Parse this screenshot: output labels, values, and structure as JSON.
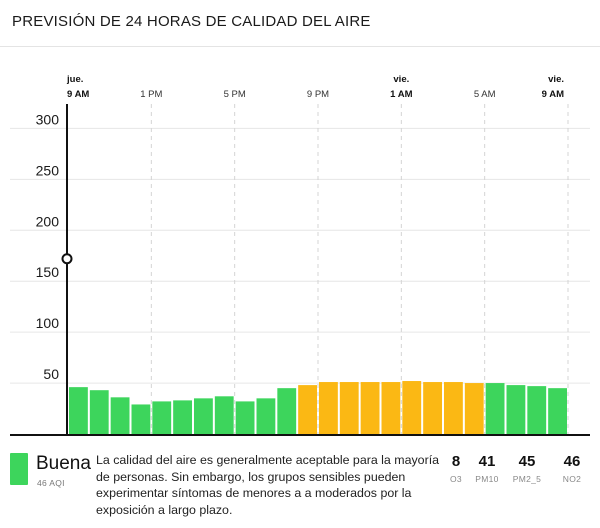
{
  "header": {
    "title": "PREVISIÓN DE 24 HORAS DE CALIDAD DEL AIRE"
  },
  "colors": {
    "good": "#3dd55c",
    "moderate": "#fbb814",
    "cursor": "#111111"
  },
  "chart_data": {
    "type": "bar",
    "title": "PREVISIÓN DE 24 HORAS DE CALIDAD DEL AIRE",
    "ylim": [
      0,
      320
    ],
    "yticks": [
      50,
      100,
      150,
      200,
      250,
      300
    ],
    "xticks": [
      {
        "hour": 0,
        "day": "jue.",
        "time": "9 AM",
        "bold": true
      },
      {
        "hour": 4,
        "day": "",
        "time": "1 PM",
        "bold": false
      },
      {
        "hour": 8,
        "day": "",
        "time": "5 PM",
        "bold": false
      },
      {
        "hour": 12,
        "day": "",
        "time": "9 PM",
        "bold": false
      },
      {
        "hour": 16,
        "day": "vie.",
        "time": "1 AM",
        "bold": true
      },
      {
        "hour": 20,
        "day": "",
        "time": "5 AM",
        "bold": false
      },
      {
        "hour": 24,
        "day": "vie.",
        "time": "9 AM",
        "bold": true
      }
    ],
    "values": [
      46,
      43,
      36,
      29,
      32,
      33,
      35,
      37,
      32,
      35,
      45,
      48,
      51,
      51,
      51,
      51,
      52,
      51,
      51,
      50,
      50,
      48,
      47,
      45
    ],
    "categories": [
      "good",
      "good",
      "good",
      "good",
      "good",
      "good",
      "good",
      "good",
      "good",
      "good",
      "good",
      "moderate",
      "moderate",
      "moderate",
      "moderate",
      "moderate",
      "moderate",
      "moderate",
      "moderate",
      "moderate",
      "good",
      "good",
      "good",
      "good"
    ],
    "current_marker": {
      "hour": 0,
      "value": 172
    }
  },
  "legend": {
    "level": "Buena",
    "aqi": "46 AQI",
    "description": "La calidad del aire es generalmente aceptable para la mayoría de personas. Sin embargo, los grupos sensibles pueden experimentar síntomas de menores a a moderados por la exposición a largo plazo.",
    "pollutants": [
      {
        "value": "8",
        "name": "O3"
      },
      {
        "value": "41",
        "name": "PM10"
      },
      {
        "value": "45",
        "name": "PM2_5"
      },
      {
        "value": "46",
        "name": "NO2"
      }
    ]
  }
}
